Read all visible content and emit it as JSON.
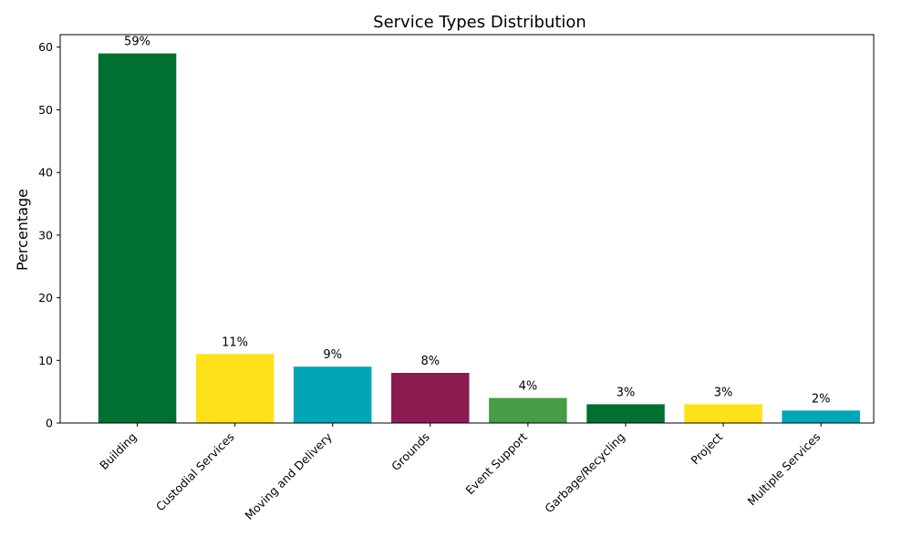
{
  "chart_data": {
    "type": "bar",
    "title": "Service Types Distribution",
    "xlabel": "",
    "ylabel": "Percentage",
    "ylim": [
      0,
      62
    ],
    "yticks": [
      0,
      10,
      20,
      30,
      40,
      50,
      60
    ],
    "grid": false,
    "categories": [
      "Building",
      "Custodial Services",
      "Moving and Delivery",
      "Grounds",
      "Event Support",
      "Garbage/Recycling",
      "Project",
      "Multiple Services"
    ],
    "values": [
      59,
      11,
      9,
      8,
      4,
      3,
      3,
      2
    ],
    "data_labels": [
      "59%",
      "11%",
      "9%",
      "8%",
      "4%",
      "3%",
      "3%",
      "2%"
    ],
    "colors": [
      "#007030",
      "#FEE11A",
      "#00A5B5",
      "#8A1C52",
      "#489D46",
      "#007030",
      "#FEE11A",
      "#00A5B5"
    ]
  }
}
